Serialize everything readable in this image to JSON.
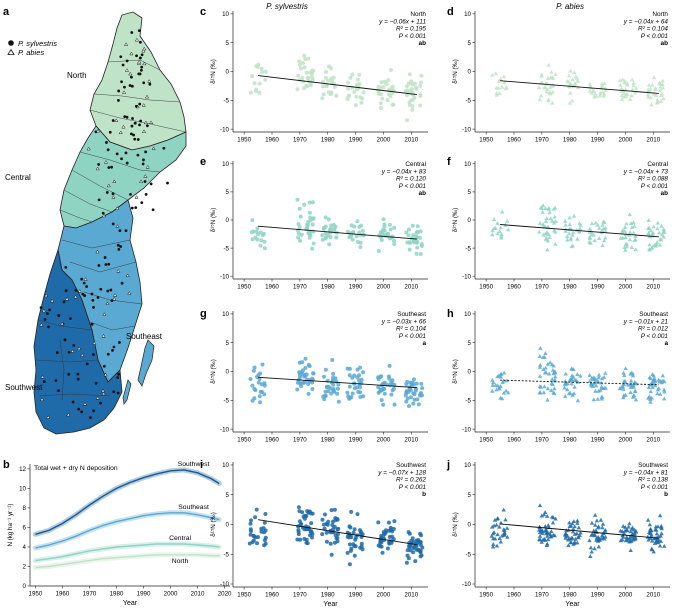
{
  "colors": {
    "north": "#bfe3c6",
    "central": "#8fd3c3",
    "southeast": "#5aa9d3",
    "southwest": "#1f6aa8",
    "southwest_dark": "#175a93",
    "axis": "#222222"
  },
  "map": {
    "panel_label": "a",
    "legend": {
      "pine": "P. sylvestris",
      "spruce": "P. abies"
    },
    "regions": {
      "north": "North",
      "central": "Central",
      "southeast": "Southeast",
      "southwest": "Southwest"
    }
  },
  "column_titles": {
    "pine": "P. sylvestris",
    "spruce": "P. abies"
  },
  "chart_data": [
    {
      "id": "b",
      "panel_label": "b",
      "type": "line",
      "title": "Total wet + dry N deposition",
      "xlabel": "Year",
      "ylabel": "N (kg ha⁻¹ yr⁻¹)",
      "xlim": [
        1948,
        2022
      ],
      "ylim": [
        0,
        12.5
      ],
      "xticks": [
        1950,
        1960,
        1970,
        1980,
        1990,
        2000,
        2010,
        2020
      ],
      "yticks": [
        0,
        2,
        4,
        6,
        8,
        10,
        12
      ],
      "x": [
        1950,
        1955,
        1960,
        1965,
        1970,
        1975,
        1980,
        1985,
        1990,
        1995,
        2000,
        2005,
        2010,
        2015,
        2018
      ],
      "series": [
        {
          "name": "Southwest",
          "region": "southwest",
          "values": [
            5.3,
            5.7,
            6.4,
            7.3,
            8.3,
            9.2,
            10.0,
            10.6,
            11.1,
            11.5,
            11.8,
            11.9,
            11.6,
            11.0,
            10.5
          ]
        },
        {
          "name": "Southeast",
          "region": "southeast",
          "values": [
            3.9,
            4.2,
            4.6,
            5.1,
            5.7,
            6.2,
            6.6,
            6.9,
            7.2,
            7.4,
            7.5,
            7.5,
            7.3,
            7.0,
            6.8
          ]
        },
        {
          "name": "Central",
          "region": "central",
          "values": [
            2.6,
            2.8,
            3.0,
            3.3,
            3.6,
            3.8,
            4.0,
            4.1,
            4.2,
            4.3,
            4.3,
            4.3,
            4.2,
            4.1,
            4.0
          ]
        },
        {
          "name": "North",
          "region": "north",
          "values": [
            1.9,
            2.0,
            2.2,
            2.4,
            2.6,
            2.8,
            2.9,
            3.0,
            3.1,
            3.2,
            3.2,
            3.2,
            3.2,
            3.1,
            3.1
          ]
        }
      ]
    },
    {
      "id": "c",
      "panel_label": "c",
      "type": "scatter",
      "species": "pine",
      "region": "north",
      "region_label": "North",
      "equation": "y = −0.06x + 111",
      "r2": "R² = 0.195",
      "p": "P < 0.001",
      "group": "ab",
      "xlabel": "",
      "ylabel": "δ¹⁵N (‰)",
      "xlim": [
        1946,
        2016
      ],
      "ylim": [
        -10.5,
        10.5
      ],
      "xticks": [
        1950,
        1960,
        1970,
        1980,
        1990,
        2000,
        2010
      ],
      "yticks": [
        -10,
        -5,
        0,
        5,
        10
      ],
      "trend": {
        "x": [
          1955,
          2012
        ],
        "y": [
          -0.7,
          -4.0
        ],
        "dashed": false
      },
      "clusters": [
        {
          "x": 1955,
          "mean": -1.2,
          "n": 14,
          "spread": 2.0
        },
        {
          "x": 1972,
          "mean": -0.8,
          "n": 30,
          "spread": 2.3
        },
        {
          "x": 1981,
          "mean": -2.3,
          "n": 22,
          "spread": 1.6
        },
        {
          "x": 1990,
          "mean": -2.8,
          "n": 22,
          "spread": 1.6
        },
        {
          "x": 2001,
          "mean": -3.5,
          "n": 28,
          "spread": 1.8
        },
        {
          "x": 2011,
          "mean": -3.8,
          "n": 32,
          "spread": 1.9
        }
      ]
    },
    {
      "id": "d",
      "panel_label": "d",
      "type": "scatter",
      "species": "spruce",
      "region": "north",
      "region_label": "North",
      "equation": "y = −0.04x + 64",
      "r2": "R² = 0.104",
      "p": "P < 0.001",
      "group": "ab",
      "xlabel": "",
      "ylabel": "δ¹⁵N (‰)",
      "xlim": [
        1946,
        2016
      ],
      "ylim": [
        -10.5,
        10.5
      ],
      "xticks": [
        1950,
        1960,
        1970,
        1980,
        1990,
        2000,
        2010
      ],
      "yticks": [
        -10,
        -5,
        0,
        5,
        10
      ],
      "trend": {
        "x": [
          1955,
          2012
        ],
        "y": [
          -1.6,
          -3.8
        ],
        "dashed": false
      },
      "clusters": [
        {
          "x": 1955,
          "mean": -2.5,
          "n": 14,
          "spread": 1.8
        },
        {
          "x": 1972,
          "mean": -2.2,
          "n": 30,
          "spread": 1.9
        },
        {
          "x": 1981,
          "mean": -2.4,
          "n": 22,
          "spread": 1.4
        },
        {
          "x": 1990,
          "mean": -3.0,
          "n": 22,
          "spread": 1.3
        },
        {
          "x": 2001,
          "mean": -3.3,
          "n": 26,
          "spread": 1.3
        },
        {
          "x": 2011,
          "mean": -3.6,
          "n": 30,
          "spread": 1.4
        }
      ]
    },
    {
      "id": "e",
      "panel_label": "e",
      "type": "scatter",
      "species": "pine",
      "region": "central",
      "region_label": "Central",
      "equation": "y = −0.04x + 83",
      "r2": "R² = 0.120",
      "p": "P < 0.001",
      "group": "ab",
      "xlabel": "",
      "ylabel": "δ¹⁵N (‰)",
      "xlim": [
        1946,
        2016
      ],
      "ylim": [
        -10.5,
        10.5
      ],
      "xticks": [
        1950,
        1960,
        1970,
        1980,
        1990,
        2000,
        2010
      ],
      "yticks": [
        -10,
        -5,
        0,
        5,
        10
      ],
      "trend": {
        "x": [
          1955,
          2012
        ],
        "y": [
          -1.1,
          -3.4
        ],
        "dashed": false
      },
      "clusters": [
        {
          "x": 1955,
          "mean": -2.5,
          "n": 16,
          "spread": 1.6
        },
        {
          "x": 1972,
          "mean": -0.8,
          "n": 34,
          "spread": 2.2
        },
        {
          "x": 1981,
          "mean": -2.3,
          "n": 24,
          "spread": 1.5
        },
        {
          "x": 1990,
          "mean": -2.5,
          "n": 22,
          "spread": 1.5
        },
        {
          "x": 2001,
          "mean": -3.0,
          "n": 26,
          "spread": 1.5
        },
        {
          "x": 2011,
          "mean": -3.8,
          "n": 30,
          "spread": 1.8
        }
      ]
    },
    {
      "id": "f",
      "panel_label": "f",
      "type": "scatter",
      "species": "spruce",
      "region": "central",
      "region_label": "Central",
      "equation": "y = −0.04x + 73",
      "r2": "R² = 0.088",
      "p": "P < 0.001",
      "group": "ab",
      "xlabel": "",
      "ylabel": "δ¹⁵N (‰)",
      "xlim": [
        1946,
        2016
      ],
      "ylim": [
        -10.5,
        10.5
      ],
      "xticks": [
        1950,
        1960,
        1970,
        1980,
        1990,
        2000,
        2010
      ],
      "yticks": [
        -10,
        -5,
        0,
        5,
        10
      ],
      "trend": {
        "x": [
          1955,
          2012
        ],
        "y": [
          -0.8,
          -3.0
        ],
        "dashed": false
      },
      "clusters": [
        {
          "x": 1955,
          "mean": -1.8,
          "n": 16,
          "spread": 1.4
        },
        {
          "x": 1972,
          "mean": -0.9,
          "n": 36,
          "spread": 2.5
        },
        {
          "x": 1981,
          "mean": -2.2,
          "n": 26,
          "spread": 1.8
        },
        {
          "x": 1990,
          "mean": -2.0,
          "n": 26,
          "spread": 1.7
        },
        {
          "x": 2001,
          "mean": -2.6,
          "n": 28,
          "spread": 1.8
        },
        {
          "x": 2011,
          "mean": -3.2,
          "n": 32,
          "spread": 1.7
        }
      ]
    },
    {
      "id": "g",
      "panel_label": "g",
      "type": "scatter",
      "species": "pine",
      "region": "southeast",
      "region_label": "Southeast",
      "equation": "y = −0.03x + 66",
      "r2": "R² = 0.104",
      "p": "P < 0.001",
      "group": "a",
      "xlabel": "",
      "ylabel": "δ¹⁵N (‰)",
      "xlim": [
        1946,
        2016
      ],
      "ylim": [
        -10.5,
        10.5
      ],
      "xticks": [
        1950,
        1960,
        1970,
        1980,
        1990,
        2000,
        2010
      ],
      "yticks": [
        -10,
        -5,
        0,
        5,
        10
      ],
      "trend": {
        "x": [
          1955,
          2012
        ],
        "y": [
          -1.0,
          -2.8
        ],
        "dashed": false
      },
      "clusters": [
        {
          "x": 1955,
          "mean": -2.3,
          "n": 22,
          "spread": 1.8
        },
        {
          "x": 1972,
          "mean": -1.0,
          "n": 36,
          "spread": 1.9
        },
        {
          "x": 1981,
          "mean": -2.0,
          "n": 30,
          "spread": 1.6
        },
        {
          "x": 1990,
          "mean": -2.4,
          "n": 30,
          "spread": 1.6
        },
        {
          "x": 2001,
          "mean": -2.6,
          "n": 32,
          "spread": 1.5
        },
        {
          "x": 2011,
          "mean": -3.2,
          "n": 36,
          "spread": 1.4
        }
      ]
    },
    {
      "id": "h",
      "panel_label": "h",
      "type": "scatter",
      "species": "spruce",
      "region": "southeast",
      "region_label": "Southeast",
      "equation": "y = −0.01x + 21",
      "r2": "R² = 0.012",
      "p": "P < 0.001",
      "group": "a",
      "xlabel": "",
      "ylabel": "δ¹⁵N (‰)",
      "xlim": [
        1946,
        2016
      ],
      "ylim": [
        -10.5,
        10.5
      ],
      "xticks": [
        1950,
        1960,
        1970,
        1980,
        1990,
        2000,
        2010
      ],
      "yticks": [
        -10,
        -5,
        0,
        5,
        10
      ],
      "trend": {
        "x": [
          1955,
          2012
        ],
        "y": [
          -1.5,
          -2.3
        ],
        "dashed": true
      },
      "clusters": [
        {
          "x": 1955,
          "mean": -2.3,
          "n": 24,
          "spread": 1.6
        },
        {
          "x": 1972,
          "mean": -0.8,
          "n": 40,
          "spread": 2.6
        },
        {
          "x": 1981,
          "mean": -2.2,
          "n": 32,
          "spread": 1.7
        },
        {
          "x": 1990,
          "mean": -2.4,
          "n": 34,
          "spread": 1.7
        },
        {
          "x": 2001,
          "mean": -2.2,
          "n": 36,
          "spread": 1.7
        },
        {
          "x": 2011,
          "mean": -2.7,
          "n": 38,
          "spread": 1.7
        }
      ]
    },
    {
      "id": "i",
      "panel_label": "i",
      "type": "scatter",
      "species": "pine",
      "region": "southwest",
      "region_label": "Southwest",
      "equation": "y = −0.07x + 128",
      "r2": "R² = 0.262",
      "p": "P < 0.001",
      "group": "b",
      "xlabel": "Year",
      "ylabel": "δ¹⁵N (‰)",
      "xlim": [
        1946,
        2016
      ],
      "ylim": [
        -10.5,
        10.5
      ],
      "xticks": [
        1950,
        1960,
        1970,
        1980,
        1990,
        2000,
        2010
      ],
      "yticks": [
        -10,
        -5,
        0,
        5,
        10
      ],
      "trend": {
        "x": [
          1955,
          2012
        ],
        "y": [
          0.8,
          -3.4
        ],
        "dashed": false
      },
      "clusters": [
        {
          "x": 1955,
          "mean": -0.8,
          "n": 26,
          "spread": 1.8
        },
        {
          "x": 1972,
          "mean": -0.2,
          "n": 40,
          "spread": 1.9
        },
        {
          "x": 1981,
          "mean": -1.0,
          "n": 34,
          "spread": 2.0
        },
        {
          "x": 1990,
          "mean": -2.0,
          "n": 34,
          "spread": 2.0
        },
        {
          "x": 2001,
          "mean": -2.3,
          "n": 36,
          "spread": 1.5
        },
        {
          "x": 2011,
          "mean": -3.6,
          "n": 40,
          "spread": 1.5
        }
      ]
    },
    {
      "id": "j",
      "panel_label": "j",
      "type": "scatter",
      "species": "spruce",
      "region": "southwest",
      "region_label": "Southwest",
      "equation": "y = −0.04x + 81",
      "r2": "R² = 0.138",
      "p": "P < 0.001",
      "group": "b",
      "xlabel": "Year",
      "ylabel": "δ¹⁵N (‰)",
      "xlim": [
        1946,
        2016
      ],
      "ylim": [
        -10.5,
        10.5
      ],
      "xticks": [
        1950,
        1960,
        1970,
        1980,
        1990,
        2000,
        2010
      ],
      "yticks": [
        -10,
        -5,
        0,
        5,
        10
      ],
      "trend": {
        "x": [
          1955,
          2012
        ],
        "y": [
          0.1,
          -2.3
        ],
        "dashed": false
      },
      "clusters": [
        {
          "x": 1955,
          "mean": -0.6,
          "n": 30,
          "spread": 1.6
        },
        {
          "x": 1972,
          "mean": -0.8,
          "n": 44,
          "spread": 1.6
        },
        {
          "x": 1981,
          "mean": -1.5,
          "n": 38,
          "spread": 1.4
        },
        {
          "x": 1990,
          "mean": -1.6,
          "n": 38,
          "spread": 1.8
        },
        {
          "x": 2001,
          "mean": -1.8,
          "n": 40,
          "spread": 1.4
        },
        {
          "x": 2011,
          "mean": -2.4,
          "n": 44,
          "spread": 1.5
        }
      ]
    }
  ]
}
